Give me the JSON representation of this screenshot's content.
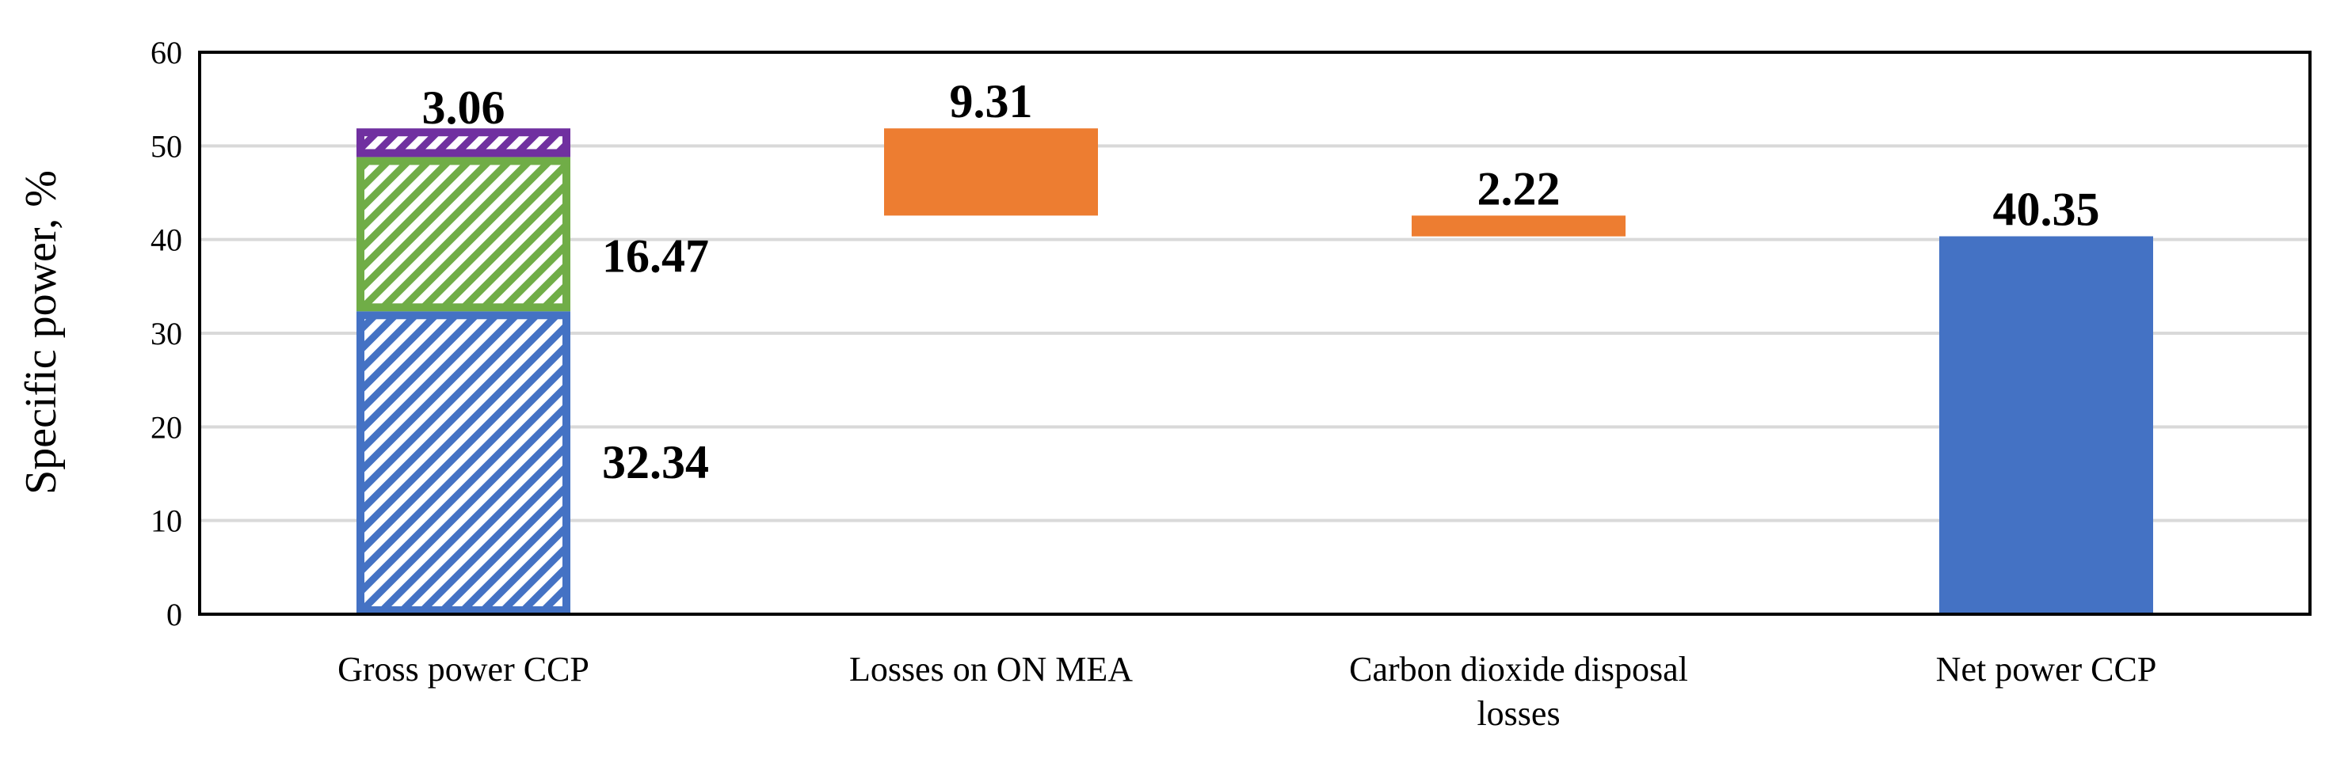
{
  "chart_data": {
    "type": "bar",
    "subtype": "waterfall",
    "ylabel": "Specific power, %",
    "ylim": [
      0,
      60
    ],
    "yticks": [
      "0",
      "10",
      "20",
      "30",
      "40",
      "50",
      "60"
    ],
    "grid": true,
    "categories": [
      {
        "lines": [
          "Gross power CCP"
        ]
      },
      {
        "lines": [
          "Losses on ON MEA"
        ]
      },
      {
        "lines": [
          "Carbon dioxide disposal",
          "losses"
        ]
      },
      {
        "lines": [
          "Net power CCP"
        ]
      }
    ],
    "bars": [
      {
        "category": 0,
        "segments": [
          {
            "base": 0,
            "value": 32.34,
            "label": "32.34",
            "color": "#4472C4",
            "hatched": true
          },
          {
            "base": 32.34,
            "value": 16.47,
            "label": "16.47",
            "color": "#70AD47",
            "hatched": true
          },
          {
            "base": 48.81,
            "value": 3.06,
            "label": "3.06",
            "color": "#7030A0",
            "hatched": true
          }
        ]
      },
      {
        "category": 1,
        "segments": [
          {
            "base": 42.56,
            "value": 9.31,
            "label": "9.31",
            "color": "#ED7D31",
            "hatched": false
          }
        ]
      },
      {
        "category": 2,
        "segments": [
          {
            "base": 40.34,
            "value": 2.22,
            "label": "2.22",
            "color": "#ED7D31",
            "hatched": false
          }
        ]
      },
      {
        "category": 3,
        "segments": [
          {
            "base": 0,
            "value": 40.35,
            "label": "40.35",
            "color": "#4472C4",
            "hatched": false
          }
        ]
      }
    ]
  }
}
